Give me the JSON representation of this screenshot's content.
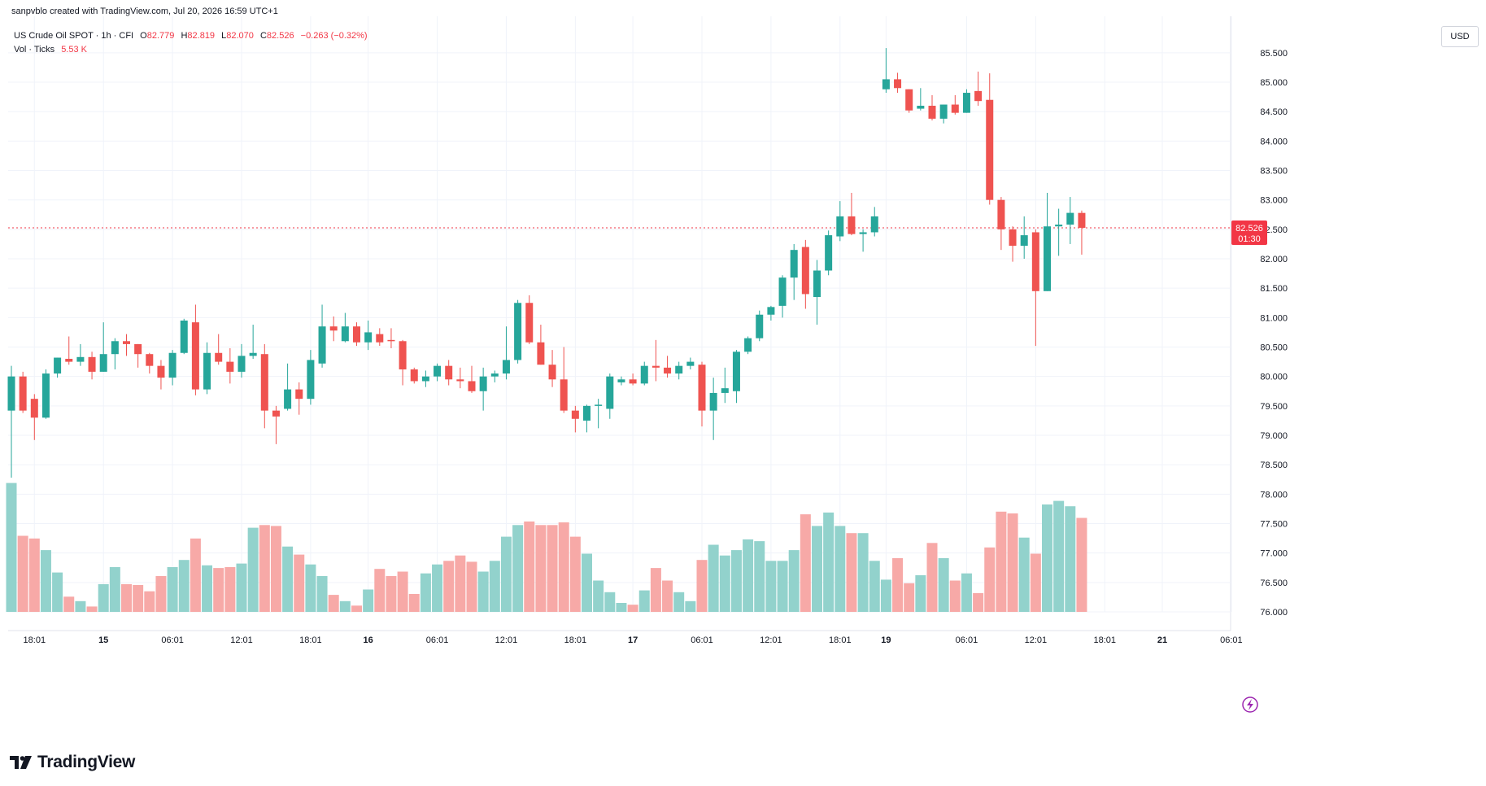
{
  "header": {
    "created_by": "sanpvblo created with TradingView.com, Jul 20, 2026 16:59 UTC+1"
  },
  "legend": {
    "symbol": "US Crude Oil SPOT · 1h · CFI",
    "o_label": "O",
    "o_value": "82.779",
    "h_label": "H",
    "h_value": "82.819",
    "l_label": "L",
    "l_value": "82.070",
    "c_label": "C",
    "c_value": "82.526",
    "change": "−0.263 (−0.32%)",
    "vol_label": "Vol · Ticks",
    "vol_value": "5.53 K"
  },
  "currency": "USD",
  "price_tag": {
    "price": "82.526",
    "countdown": "01:30"
  },
  "logo": {
    "text": "TradingView"
  },
  "colors": {
    "up": "#26a69a",
    "down": "#ef5350",
    "vol_up": "#92d2cc",
    "vol_down": "#f7a9a7",
    "grid": "#f0f3fa",
    "last_price_line": "#f23645"
  },
  "chart_data": {
    "type": "candlestick",
    "timeframe": "1h",
    "y_ticks": [
      "85.500",
      "85.000",
      "84.500",
      "84.000",
      "83.500",
      "83.000",
      "82.500",
      "82.000",
      "81.500",
      "81.000",
      "80.500",
      "80.000",
      "79.500",
      "79.000",
      "78.500",
      "78.000",
      "77.500",
      "77.000",
      "76.500",
      "76.000"
    ],
    "x_ticks": [
      {
        "label": "18:01",
        "i": 2
      },
      {
        "label": "15",
        "i": 8
      },
      {
        "label": "06:01",
        "i": 14
      },
      {
        "label": "12:01",
        "i": 20
      },
      {
        "label": "18:01",
        "i": 26
      },
      {
        "label": "16",
        "i": 31
      },
      {
        "label": "06:01",
        "i": 37
      },
      {
        "label": "12:01",
        "i": 43
      },
      {
        "label": "18:01",
        "i": 49
      },
      {
        "label": "17",
        "i": 54
      },
      {
        "label": "06:01",
        "i": 60
      },
      {
        "label": "12:01",
        "i": 66
      },
      {
        "label": "18:01",
        "i": 72
      },
      {
        "label": "19",
        "i": 76
      },
      {
        "label": "06:01",
        "i": 83
      },
      {
        "label": "12:01",
        "i": 89
      },
      {
        "label": "18:01",
        "i": 95
      },
      {
        "label": "21",
        "i": 100
      },
      {
        "label": "06:01",
        "i": 106
      }
    ],
    "candles": [
      {
        "o": 79.42,
        "h": 80.18,
        "l": 78.28,
        "c": 80.0,
        "v": 0.72
      },
      {
        "o": 80.0,
        "h": 80.08,
        "l": 79.38,
        "c": 79.42,
        "v": 0.425
      },
      {
        "o": 79.62,
        "h": 79.7,
        "l": 78.92,
        "c": 79.3,
        "v": 0.41
      },
      {
        "o": 79.3,
        "h": 80.12,
        "l": 79.28,
        "c": 80.05,
        "v": 0.345
      },
      {
        "o": 80.05,
        "h": 80.32,
        "l": 79.98,
        "c": 80.32,
        "v": 0.22
      },
      {
        "o": 80.3,
        "h": 80.68,
        "l": 80.2,
        "c": 80.25,
        "v": 0.085
      },
      {
        "o": 80.25,
        "h": 80.55,
        "l": 80.18,
        "c": 80.33,
        "v": 0.06
      },
      {
        "o": 80.33,
        "h": 80.42,
        "l": 79.95,
        "c": 80.08,
        "v": 0.03
      },
      {
        "o": 80.08,
        "h": 80.92,
        "l": 80.08,
        "c": 80.38,
        "v": 0.155
      },
      {
        "o": 80.38,
        "h": 80.65,
        "l": 80.12,
        "c": 80.6,
        "v": 0.25
      },
      {
        "o": 80.6,
        "h": 80.72,
        "l": 80.35,
        "c": 80.55,
        "v": 0.155
      },
      {
        "o": 80.55,
        "h": 80.55,
        "l": 80.15,
        "c": 80.38,
        "v": 0.15
      },
      {
        "o": 80.38,
        "h": 80.4,
        "l": 80.05,
        "c": 80.18,
        "v": 0.115
      },
      {
        "o": 80.18,
        "h": 80.28,
        "l": 79.78,
        "c": 79.98,
        "v": 0.2
      },
      {
        "o": 79.98,
        "h": 80.45,
        "l": 79.85,
        "c": 80.4,
        "v": 0.25
      },
      {
        "o": 80.4,
        "h": 80.98,
        "l": 80.38,
        "c": 80.95,
        "v": 0.29
      },
      {
        "o": 80.92,
        "h": 81.22,
        "l": 79.68,
        "c": 79.78,
        "v": 0.41
      },
      {
        "o": 79.78,
        "h": 80.58,
        "l": 79.7,
        "c": 80.4,
        "v": 0.26
      },
      {
        "o": 80.4,
        "h": 80.72,
        "l": 80.2,
        "c": 80.25,
        "v": 0.245
      },
      {
        "o": 80.25,
        "h": 80.48,
        "l": 79.88,
        "c": 80.08,
        "v": 0.25
      },
      {
        "o": 80.08,
        "h": 80.55,
        "l": 79.98,
        "c": 80.35,
        "v": 0.27
      },
      {
        "o": 80.35,
        "h": 80.88,
        "l": 80.3,
        "c": 80.4,
        "v": 0.47
      },
      {
        "o": 80.38,
        "h": 80.55,
        "l": 79.12,
        "c": 79.42,
        "v": 0.485
      },
      {
        "o": 79.42,
        "h": 79.5,
        "l": 78.85,
        "c": 79.32,
        "v": 0.48
      },
      {
        "o": 79.45,
        "h": 80.22,
        "l": 79.42,
        "c": 79.78,
        "v": 0.365
      },
      {
        "o": 79.78,
        "h": 79.9,
        "l": 79.35,
        "c": 79.62,
        "v": 0.32
      },
      {
        "o": 79.62,
        "h": 80.45,
        "l": 79.52,
        "c": 80.28,
        "v": 0.265
      },
      {
        "o": 80.22,
        "h": 81.22,
        "l": 80.15,
        "c": 80.85,
        "v": 0.2
      },
      {
        "o": 80.85,
        "h": 81.02,
        "l": 80.6,
        "c": 80.78,
        "v": 0.095
      },
      {
        "o": 80.6,
        "h": 81.08,
        "l": 80.58,
        "c": 80.85,
        "v": 0.06
      },
      {
        "o": 80.85,
        "h": 80.92,
        "l": 80.52,
        "c": 80.58,
        "v": 0.035
      },
      {
        "o": 80.58,
        "h": 80.95,
        "l": 80.45,
        "c": 80.75,
        "v": 0.125
      },
      {
        "o": 80.72,
        "h": 80.82,
        "l": 80.52,
        "c": 80.58,
        "v": 0.24
      },
      {
        "o": 80.62,
        "h": 80.82,
        "l": 80.48,
        "c": 80.6,
        "v": 0.2
      },
      {
        "o": 80.6,
        "h": 80.62,
        "l": 79.85,
        "c": 80.12,
        "v": 0.225
      },
      {
        "o": 80.12,
        "h": 80.15,
        "l": 79.88,
        "c": 79.92,
        "v": 0.1
      },
      {
        "o": 79.92,
        "h": 80.1,
        "l": 79.82,
        "c": 80.0,
        "v": 0.215
      },
      {
        "o": 80.0,
        "h": 80.22,
        "l": 79.92,
        "c": 80.18,
        "v": 0.265
      },
      {
        "o": 80.18,
        "h": 80.28,
        "l": 79.85,
        "c": 79.95,
        "v": 0.285
      },
      {
        "o": 79.95,
        "h": 80.15,
        "l": 79.8,
        "c": 79.92,
        "v": 0.315
      },
      {
        "o": 79.92,
        "h": 80.18,
        "l": 79.72,
        "c": 79.75,
        "v": 0.28
      },
      {
        "o": 79.75,
        "h": 80.15,
        "l": 79.42,
        "c": 80.0,
        "v": 0.225
      },
      {
        "o": 80.0,
        "h": 80.1,
        "l": 79.9,
        "c": 80.05,
        "v": 0.285
      },
      {
        "o": 80.05,
        "h": 80.85,
        "l": 79.95,
        "c": 80.28,
        "v": 0.42
      },
      {
        "o": 80.28,
        "h": 81.3,
        "l": 80.22,
        "c": 81.25,
        "v": 0.485
      },
      {
        "o": 81.25,
        "h": 81.38,
        "l": 80.55,
        "c": 80.58,
        "v": 0.505
      },
      {
        "o": 80.58,
        "h": 80.88,
        "l": 80.2,
        "c": 80.2,
        "v": 0.485
      },
      {
        "o": 80.2,
        "h": 80.45,
        "l": 79.82,
        "c": 79.95,
        "v": 0.485
      },
      {
        "o": 79.95,
        "h": 80.5,
        "l": 79.38,
        "c": 79.42,
        "v": 0.5
      },
      {
        "o": 79.42,
        "h": 79.5,
        "l": 79.05,
        "c": 79.28,
        "v": 0.42
      },
      {
        "o": 79.25,
        "h": 79.52,
        "l": 79.05,
        "c": 79.5,
        "v": 0.325
      },
      {
        "o": 79.5,
        "h": 79.62,
        "l": 79.12,
        "c": 79.52,
        "v": 0.175
      },
      {
        "o": 79.45,
        "h": 80.05,
        "l": 79.28,
        "c": 80.0,
        "v": 0.11
      },
      {
        "o": 79.9,
        "h": 80.0,
        "l": 79.85,
        "c": 79.95,
        "v": 0.05
      },
      {
        "o": 79.95,
        "h": 80.05,
        "l": 79.85,
        "c": 79.88,
        "v": 0.04
      },
      {
        "o": 79.88,
        "h": 80.25,
        "l": 79.85,
        "c": 80.18,
        "v": 0.12
      },
      {
        "o": 80.18,
        "h": 80.62,
        "l": 79.92,
        "c": 80.15,
        "v": 0.245
      },
      {
        "o": 80.15,
        "h": 80.35,
        "l": 79.98,
        "c": 80.05,
        "v": 0.175
      },
      {
        "o": 80.05,
        "h": 80.25,
        "l": 79.95,
        "c": 80.18,
        "v": 0.11
      },
      {
        "o": 80.18,
        "h": 80.32,
        "l": 80.12,
        "c": 80.25,
        "v": 0.06
      },
      {
        "o": 80.2,
        "h": 80.25,
        "l": 79.15,
        "c": 79.42,
        "v": 0.29
      },
      {
        "o": 79.42,
        "h": 79.98,
        "l": 78.92,
        "c": 79.72,
        "v": 0.375
      },
      {
        "o": 79.72,
        "h": 80.15,
        "l": 79.55,
        "c": 79.8,
        "v": 0.315
      },
      {
        "o": 79.75,
        "h": 80.45,
        "l": 79.55,
        "c": 80.42,
        "v": 0.345
      },
      {
        "o": 80.42,
        "h": 80.68,
        "l": 80.38,
        "c": 80.65,
        "v": 0.405
      },
      {
        "o": 80.65,
        "h": 81.12,
        "l": 80.6,
        "c": 81.05,
        "v": 0.395
      },
      {
        "o": 81.05,
        "h": 81.2,
        "l": 80.95,
        "c": 81.18,
        "v": 0.285
      },
      {
        "o": 81.2,
        "h": 81.72,
        "l": 81.0,
        "c": 81.68,
        "v": 0.285
      },
      {
        "o": 81.68,
        "h": 82.25,
        "l": 81.3,
        "c": 82.15,
        "v": 0.345
      },
      {
        "o": 82.2,
        "h": 82.32,
        "l": 81.15,
        "c": 81.4,
        "v": 0.545
      },
      {
        "o": 81.35,
        "h": 81.98,
        "l": 80.88,
        "c": 81.8,
        "v": 0.48
      },
      {
        "o": 81.8,
        "h": 82.48,
        "l": 81.72,
        "c": 82.4,
        "v": 0.555
      },
      {
        "o": 82.38,
        "h": 82.98,
        "l": 82.3,
        "c": 82.72,
        "v": 0.48
      },
      {
        "o": 82.72,
        "h": 83.12,
        "l": 82.4,
        "c": 82.42,
        "v": 0.44
      },
      {
        "o": 82.42,
        "h": 82.5,
        "l": 82.12,
        "c": 82.45,
        "v": 0.44
      },
      {
        "o": 82.45,
        "h": 82.88,
        "l": 82.38,
        "c": 82.72,
        "v": 0.285
      },
      {
        "o": 84.88,
        "h": 85.58,
        "l": 84.82,
        "c": 85.05,
        "v": 0.18
      },
      {
        "o": 85.05,
        "h": 85.16,
        "l": 84.82,
        "c": 84.9,
        "v": 0.3
      },
      {
        "o": 84.88,
        "h": 84.88,
        "l": 84.48,
        "c": 84.52,
        "v": 0.16
      },
      {
        "o": 84.55,
        "h": 84.9,
        "l": 84.52,
        "c": 84.6,
        "v": 0.205
      },
      {
        "o": 84.6,
        "h": 84.78,
        "l": 84.35,
        "c": 84.38,
        "v": 0.385
      },
      {
        "o": 84.38,
        "h": 84.62,
        "l": 84.3,
        "c": 84.62,
        "v": 0.3
      },
      {
        "o": 84.62,
        "h": 84.78,
        "l": 84.45,
        "c": 84.48,
        "v": 0.175
      },
      {
        "o": 84.48,
        "h": 84.88,
        "l": 84.48,
        "c": 84.82,
        "v": 0.215
      },
      {
        "o": 84.85,
        "h": 85.18,
        "l": 84.6,
        "c": 84.68,
        "v": 0.105
      },
      {
        "o": 84.7,
        "h": 85.15,
        "l": 82.92,
        "c": 83.0,
        "v": 0.36
      },
      {
        "o": 83.0,
        "h": 83.05,
        "l": 82.15,
        "c": 82.5,
        "v": 0.56
      },
      {
        "o": 82.5,
        "h": 82.55,
        "l": 81.95,
        "c": 82.22,
        "v": 0.55
      },
      {
        "o": 82.22,
        "h": 82.72,
        "l": 82.0,
        "c": 82.4,
        "v": 0.415
      },
      {
        "o": 82.45,
        "h": 82.5,
        "l": 80.52,
        "c": 81.45,
        "v": 0.325
      },
      {
        "o": 81.45,
        "h": 83.12,
        "l": 81.45,
        "c": 82.55,
        "v": 0.6
      },
      {
        "o": 82.55,
        "h": 82.85,
        "l": 82.05,
        "c": 82.58,
        "v": 0.62
      },
      {
        "o": 82.58,
        "h": 83.05,
        "l": 82.25,
        "c": 82.78,
        "v": 0.59
      },
      {
        "o": 82.779,
        "h": 82.819,
        "l": 82.07,
        "c": 82.526,
        "v": 0.525
      }
    ]
  }
}
